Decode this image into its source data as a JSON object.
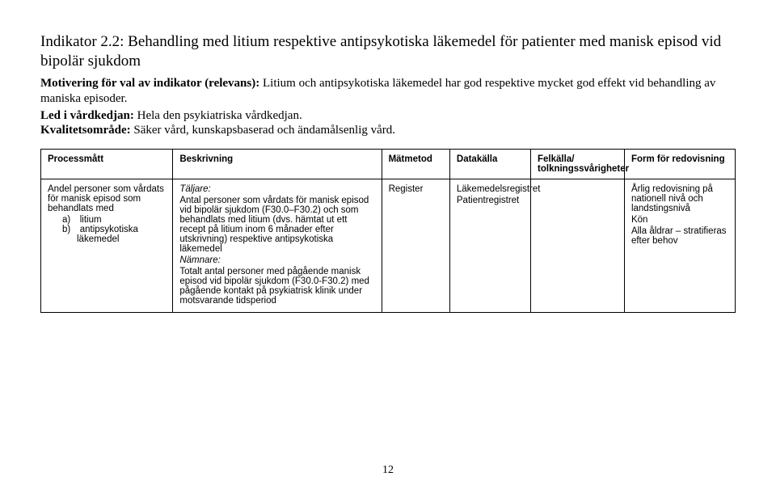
{
  "heading": {
    "title": "Indikator 2.2: Behandling med litium respektive antipsykotiska läkemedel för patienter med manisk episod vid bipolär sjukdom",
    "motivation_label": "Motivering för val av indikator (relevans): ",
    "motivation_text": "Litium och antipsykotiska läkemedel har god respektive mycket god effekt vid behandling av maniska episoder.",
    "led_label": "Led i vårdkedjan: ",
    "led_text": "Hela den psykiatriska vårdkedjan.",
    "kvalitet_label": "Kvalitetsområde: ",
    "kvalitet_text": "Säker vård, kunskapsbaserad och ändamålsenlig vård."
  },
  "table": {
    "headers": {
      "processmatt": "Processmått",
      "beskrivning": "Beskrivning",
      "matmetod": "Mätmetod",
      "datakalla": "Datakälla",
      "felkalla": "Felkälla/ tolkningssvårigheter",
      "form": "Form för redovisning"
    },
    "row": {
      "proc_intro": "Andel personer som vårdats för manisk episod som behandlats med",
      "proc_a": "a) litium",
      "proc_b": "b) antipsykotiska läkemedel",
      "taljare_label": "Täljare:",
      "taljare_text": "Antal personer som vårdats för manisk episod vid bipolär sjukdom (F30.0–F30.2) och som behandlats med litium (dvs. hämtat ut ett recept på litium inom 6 månader efter utskrivning) respektive antipsykotiska läkemedel",
      "namnare_label": "Nämnare:",
      "namnare_text": "Totalt antal personer med pågående manisk episod vid bipolär sjukdom (F30.0-F30.2) med pågående kontakt på psykiatrisk klinik under motsvarande tidsperiod",
      "matmetod": "Register",
      "data1": "Läkemedelsregistret",
      "data2": "Patientregistret",
      "form1": "Årlig redovisning på nationell nivå och landstingsnivå",
      "form2": "Kön",
      "form3": "Alla åldrar – stratifieras efter behov"
    }
  },
  "page_number": "12"
}
